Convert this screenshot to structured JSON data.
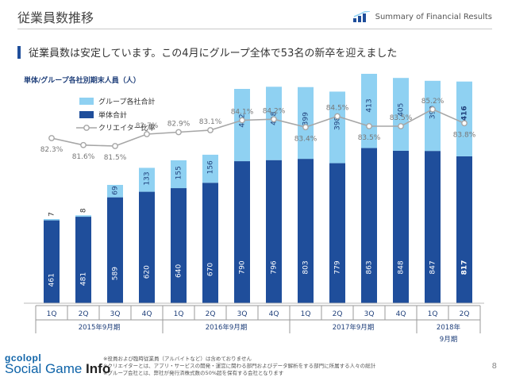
{
  "header": {
    "title": "従業員数推移",
    "badge": "Summary of Financial Results"
  },
  "subtitle": "従業員数は安定しています。この4月にグループ全体で53名の新卒を迎えました",
  "chart_title": "単体/グループ各社別期末人員（人）",
  "colors": {
    "group": "#8fd1f2",
    "single": "#1f4e9b",
    "ratio_line": "#a6a6a6"
  },
  "chart_data": {
    "type": "bar",
    "stacked": true,
    "categories": [
      "1Q",
      "2Q",
      "3Q",
      "4Q",
      "1Q",
      "2Q",
      "3Q",
      "4Q",
      "1Q",
      "2Q",
      "3Q",
      "4Q",
      "1Q",
      "2Q"
    ],
    "period_groups": [
      {
        "label": "2015年9月期",
        "count": 4
      },
      {
        "label": "2016年9月期",
        "count": 4
      },
      {
        "label": "2017年9月期",
        "count": 4
      },
      {
        "label": "2018年\n9月期",
        "count": 2
      }
    ],
    "series": [
      {
        "name": "単体合計",
        "values": [
          461,
          481,
          589,
          620,
          640,
          670,
          790,
          796,
          803,
          779,
          863,
          848,
          847,
          817
        ]
      },
      {
        "name": "グループ各社合計",
        "values": [
          7,
          8,
          69,
          133,
          155,
          156,
          402,
          408,
          399,
          398,
          413,
          405,
          390,
          416
        ]
      },
      {
        "name": "クリエイター比率",
        "values": [
          82.3,
          81.6,
          81.5,
          82.7,
          82.9,
          83.1,
          84.1,
          84.2,
          83.4,
          84.5,
          83.5,
          83.5,
          85.2,
          83.8
        ],
        "labels": [
          "82.3%",
          "81.6%",
          "81.5%",
          "82.7%",
          "82.9%",
          "83.1%",
          "84.1%",
          "84.2%",
          "83.4%",
          "84.5%",
          "83.5%",
          "83.5%",
          "85.2%",
          "83.8%"
        ]
      }
    ],
    "legend": [
      "グループ各社合計",
      "単体合計",
      "クリエイター比率"
    ],
    "legend_position": "top-left",
    "highlight_last": true
  },
  "footnotes": [
    "※役員および臨時従業員（アルバイトなど）は含めておりません",
    "※クリエイターとは、アプリ・サービスの開発・運営に関わる部門およびデータ解析をする部門に所属する人々の総計",
    "※グループ会社とは、弊社が発行済株式数の50%超を保有する会社となります"
  ],
  "page_number": "8",
  "watermark": {
    "top": "gcolopl",
    "bottom_a": "Social Game ",
    "bottom_b": "Info"
  }
}
